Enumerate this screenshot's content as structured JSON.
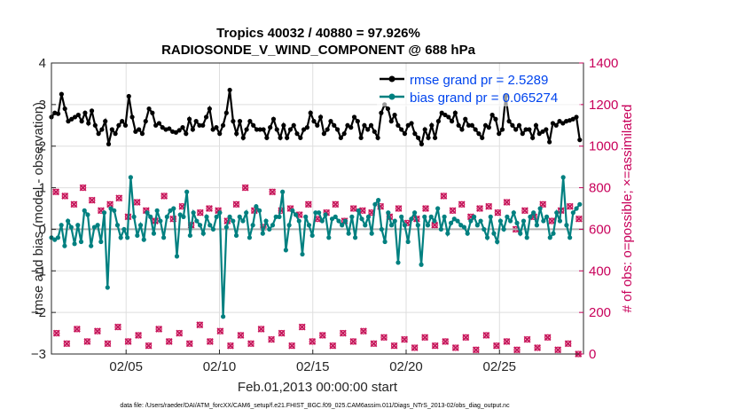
{
  "chart_data": {
    "type": "line",
    "title": "Tropics 40032 / 40880 = 97.926%",
    "subtitle": "RADIOSONDE_V_WIND_COMPONENT @ 688 hPa",
    "xlabel": "Feb.01,2013 00:00:00 start",
    "ylabel": "rmse and bias (model - observation)",
    "ylabel_right": "# of obs: o=possible; ×=assimilated",
    "x_range": [
      1,
      29.5
    ],
    "ylim": [
      -3,
      4
    ],
    "ylim_right": [
      0,
      1400
    ],
    "x_ticks": [
      5,
      10,
      15,
      20,
      25
    ],
    "x_tick_labels": [
      "02/05",
      "02/10",
      "02/15",
      "02/20",
      "02/25"
    ],
    "y_ticks": [
      -3,
      -2,
      -1,
      0,
      1,
      2,
      3,
      4
    ],
    "y_tick_labels": [
      "−3",
      "−2",
      "−1",
      "0",
      "1",
      "2",
      "3",
      "4"
    ],
    "y_right_ticks": [
      0,
      200,
      400,
      600,
      800,
      1000,
      1200,
      1400
    ],
    "y_right_tick_labels": [
      "0",
      "200",
      "400",
      "600",
      "800",
      "1000",
      "1200",
      "1400"
    ],
    "grid": true,
    "legend_position": "top-right",
    "series": [
      {
        "name": "rmse grand pr = 2.5289",
        "color": "#000000",
        "values": [
          2.7,
          2.8,
          2.78,
          3.25,
          2.9,
          2.6,
          2.65,
          2.7,
          2.75,
          2.6,
          2.8,
          2.55,
          2.85,
          2.5,
          2.3,
          2.4,
          2.6,
          2.05,
          2.4,
          2.3,
          2.5,
          2.6,
          2.5,
          3.2,
          2.7,
          2.35,
          2.4,
          2.3,
          2.6,
          2.9,
          2.8,
          2.5,
          2.55,
          2.45,
          2.4,
          2.42,
          2.35,
          2.33,
          2.38,
          2.45,
          2.3,
          2.65,
          2.4,
          2.6,
          2.5,
          2.5,
          2.7,
          2.9,
          2.4,
          2.45,
          2.3,
          2.5,
          2.8,
          3.35,
          2.6,
          2.3,
          2.6,
          2.2,
          2.4,
          2.6,
          2.5,
          2.4,
          2.4,
          2.4,
          2.2,
          2.45,
          2.65,
          2.4,
          2.2,
          2.5,
          2.2,
          2.4,
          2.5,
          2.3,
          2.2,
          2.4,
          2.45,
          2.8,
          2.6,
          2.5,
          2.7,
          2.3,
          2.4,
          2.6,
          2.5,
          2.4,
          2.2,
          2.3,
          2.5,
          2.45,
          2.7,
          2.6,
          2.2,
          2.5,
          2.4,
          2.5,
          2.35,
          2.2,
          2.8,
          3.0,
          2.9,
          2.6,
          2.75,
          2.5,
          2.4,
          2.3,
          2.5,
          2.55,
          2.3,
          2.2,
          2.05,
          2.4,
          2.2,
          2.5,
          2.2,
          2.6,
          2.8,
          2.75,
          2.7,
          2.6,
          2.8,
          2.5,
          2.4,
          2.65,
          2.5,
          2.5,
          2.4,
          2.3,
          2.2,
          2.5,
          2.45,
          2.75,
          2.65,
          2.3,
          2.4,
          3.2,
          2.6,
          2.5,
          2.4,
          2.5,
          2.3,
          2.4,
          2.4,
          2.2,
          2.5,
          2.3,
          2.35,
          2.4,
          2.1,
          2.55,
          2.5,
          2.6,
          2.55,
          2.6,
          2.62,
          2.65,
          2.7,
          2.15
        ]
      },
      {
        "name": "bias grand pr = 0.065274",
        "color": "#008080",
        "values": [
          -0.2,
          -0.25,
          -0.2,
          0.1,
          -0.4,
          0.2,
          0.05,
          -0.35,
          0.1,
          -0.3,
          0.45,
          0.35,
          -0.4,
          0.05,
          0.1,
          -0.3,
          0.4,
          -1.4,
          0.5,
          0.45,
          0.1,
          -0.2,
          0.0,
          -0.2,
          1.25,
          0.3,
          -0.15,
          0.1,
          -0.25,
          0.4,
          0.3,
          -0.1,
          0.45,
          0.2,
          -0.2,
          0.3,
          0.45,
          0.5,
          -0.65,
          0.35,
          0.3,
          0.9,
          -0.15,
          0.4,
          0.2,
          0.1,
          -0.1,
          0.3,
          0.1,
          0.0,
          0.3,
          0.4,
          -2.1,
          0.05,
          0.3,
          0.2,
          -0.15,
          0.3,
          0.2,
          0.4,
          -0.2,
          0.1,
          0.55,
          0.45,
          -0.1,
          0.2,
          0.0,
          0.1,
          0.3,
          0.3,
          0.9,
          -0.5,
          0.1,
          0.45,
          0.35,
          0.2,
          -0.6,
          0.3,
          0.1,
          -0.15,
          0.4,
          0.4,
          0.2,
          0.35,
          -0.2,
          0.25,
          0.3,
          0.2,
          0.1,
          0.2,
          -0.1,
          0.3,
          -0.2,
          0.45,
          0.25,
          0.1,
          0.3,
          -0.1,
          0.6,
          0.7,
          0.0,
          -0.3,
          0.4,
          0.1,
          0.2,
          -0.8,
          0.3,
          0.1,
          -0.3,
          0.25,
          0.4,
          0.1,
          -0.85,
          0.3,
          0.1,
          0.3,
          0.2,
          0.5,
          0.0,
          0.3,
          -0.1,
          0.15,
          0.25,
          0.2,
          0.1,
          0.05,
          -0.1,
          0.2,
          0.3,
          0.1,
          0.2,
          0.0,
          -0.2,
          0.3,
          -0.1,
          -0.3,
          0.2,
          0.0,
          0.3,
          0.2,
          0.4,
          0.15,
          -0.1,
          0.2,
          -0.2,
          0.3,
          0.4,
          0.1,
          0.5,
          0.2,
          0.3,
          -0.2,
          -0.1,
          0.4,
          0.2,
          1.25,
          0.1,
          -0.2,
          0.4,
          0.5,
          0.6
        ]
      }
    ],
    "obs_possible_top": [
      780,
      760,
      720,
      800,
      740,
      690,
      720,
      750,
      660,
      730,
      690,
      640,
      760,
      650,
      710,
      620,
      680,
      700,
      690,
      640,
      720,
      800,
      690,
      610,
      780,
      690,
      700,
      670,
      720,
      650,
      680,
      720,
      640,
      700,
      690,
      680,
      710,
      660,
      700,
      630,
      650,
      700,
      620,
      760,
      690,
      720,
      660,
      700,
      710,
      680,
      730,
      600,
      690,
      660,
      720,
      640,
      690,
      710,
      650
    ],
    "obs_possible_bottom": [
      100,
      50,
      120,
      60,
      110,
      50,
      130,
      60,
      90,
      40,
      120,
      60,
      100,
      50,
      140,
      60,
      110,
      40,
      90,
      50,
      120,
      70,
      100,
      40,
      130,
      60,
      90,
      40,
      100,
      60,
      110,
      50,
      80,
      40,
      70,
      30,
      80,
      40,
      60,
      30,
      80,
      20,
      90,
      40,
      60,
      20,
      70,
      30,
      80,
      20,
      50,
      0
    ],
    "footnote": "data file: /Users/raeder/DAI/ATM_forcXX/CAM6_setup/f.e21.FHIST_BGC.f09_025.CAM6assim.011/Diags_NTrS_2013-02/obs_diag_output.nc"
  }
}
